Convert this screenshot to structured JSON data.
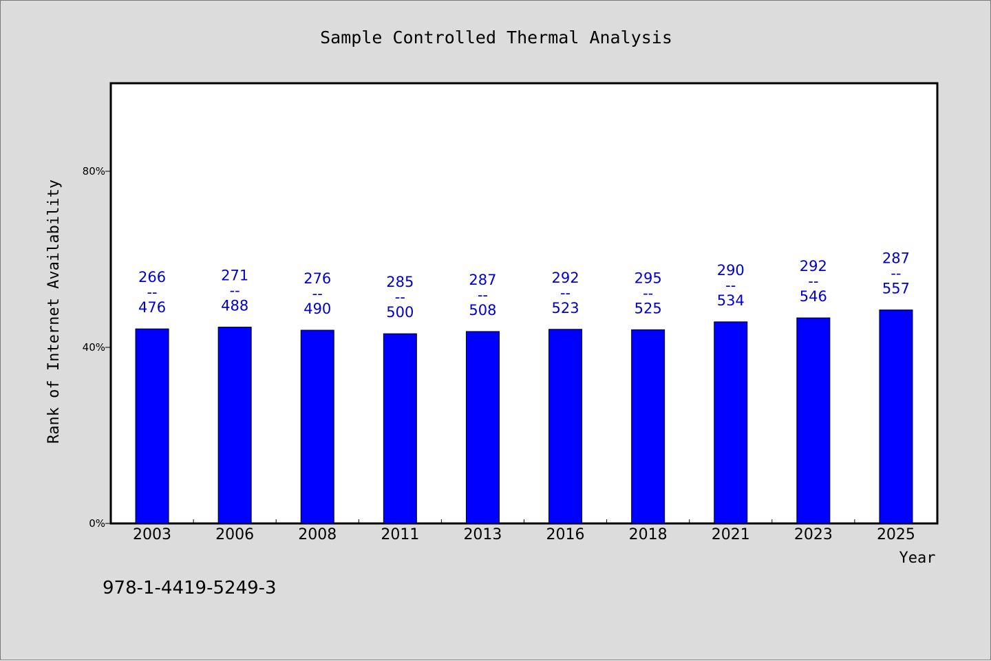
{
  "chart_data": {
    "type": "bar",
    "title": "Sample Controlled Thermal Analysis",
    "xlabel": "Year",
    "ylabel": "Rank of Internet Availability",
    "y_ticks": [
      "0%",
      "40%",
      "80%"
    ],
    "ylim": [
      0,
      100
    ],
    "grid": false,
    "legend": "none",
    "categories": [
      "2003",
      "2006",
      "2008",
      "2011",
      "2013",
      "2016",
      "2018",
      "2021",
      "2023",
      "2025"
    ],
    "values": [
      44.2,
      44.6,
      43.9,
      43.1,
      43.6,
      44.1,
      44.0,
      45.8,
      46.7,
      48.5
    ],
    "annotations": [
      {
        "top": "266",
        "sep": "--",
        "bottom": "476"
      },
      {
        "top": "271",
        "sep": "--",
        "bottom": "488"
      },
      {
        "top": "276",
        "sep": "--",
        "bottom": "490"
      },
      {
        "top": "285",
        "sep": "--",
        "bottom": "500"
      },
      {
        "top": "287",
        "sep": "--",
        "bottom": "508"
      },
      {
        "top": "292",
        "sep": "--",
        "bottom": "523"
      },
      {
        "top": "295",
        "sep": "--",
        "bottom": "525"
      },
      {
        "top": "290",
        "sep": "--",
        "bottom": "534"
      },
      {
        "top": "292",
        "sep": "--",
        "bottom": "546"
      },
      {
        "top": "287",
        "sep": "--",
        "bottom": "557"
      }
    ],
    "colors": {
      "bar": "#0000ff",
      "annotation": "#0000cc",
      "background": "#dcdcdc",
      "plot_background": "#ffffff"
    }
  },
  "footer_text": "978-1-4419-5249-3"
}
